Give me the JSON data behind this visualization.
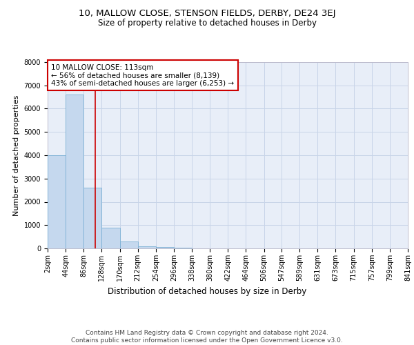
{
  "title": "10, MALLOW CLOSE, STENSON FIELDS, DERBY, DE24 3EJ",
  "subtitle": "Size of property relative to detached houses in Derby",
  "xlabel": "Distribution of detached houses by size in Derby",
  "ylabel": "Number of detached properties",
  "bin_edges": [
    2,
    44,
    86,
    128,
    170,
    212,
    254,
    296,
    338,
    380,
    422,
    464,
    506,
    547,
    589,
    631,
    673,
    715,
    757,
    799,
    841
  ],
  "bar_heights": [
    4000,
    6600,
    2600,
    900,
    300,
    100,
    50,
    20,
    10,
    0,
    0,
    0,
    0,
    0,
    0,
    0,
    0,
    0,
    0,
    0
  ],
  "bar_color": "#c5d8ee",
  "bar_edge_color": "#7aafd4",
  "grid_color": "#c8d4e8",
  "background_color": "#e8eef8",
  "property_size": 113,
  "red_line_color": "#cc0000",
  "annotation_text": "10 MALLOW CLOSE: 113sqm\n← 56% of detached houses are smaller (8,139)\n43% of semi-detached houses are larger (6,253) →",
  "annotation_box_color": "#ffffff",
  "annotation_box_edge": "#cc0000",
  "ylim": [
    0,
    8000
  ],
  "yticks": [
    0,
    1000,
    2000,
    3000,
    4000,
    5000,
    6000,
    7000,
    8000
  ],
  "footer": "Contains HM Land Registry data © Crown copyright and database right 2024.\nContains public sector information licensed under the Open Government Licence v3.0.",
  "title_fontsize": 9.5,
  "subtitle_fontsize": 8.5,
  "xlabel_fontsize": 8.5,
  "ylabel_fontsize": 8,
  "tick_fontsize": 7,
  "annotation_fontsize": 7.5,
  "footer_fontsize": 6.5
}
